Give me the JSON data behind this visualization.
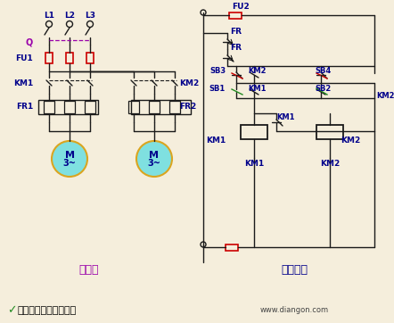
{
  "bg_color": "#f5eedc",
  "label_color_blue": "#00008B",
  "label_color_red": "#CC0000",
  "label_color_green": "#228B22",
  "label_color_purple": "#9900AA",
  "wire_color": "#1a1a1a",
  "fuse_color": "#CC0000",
  "motor_color": "#7FE0E0",
  "motor_border": "#DAA520",
  "subtitle_main": "主电路",
  "subtitle_ctrl": "控制电路",
  "bottom_text": "顺序启动逆序停止控制",
  "watermark": "www.diangon.com"
}
